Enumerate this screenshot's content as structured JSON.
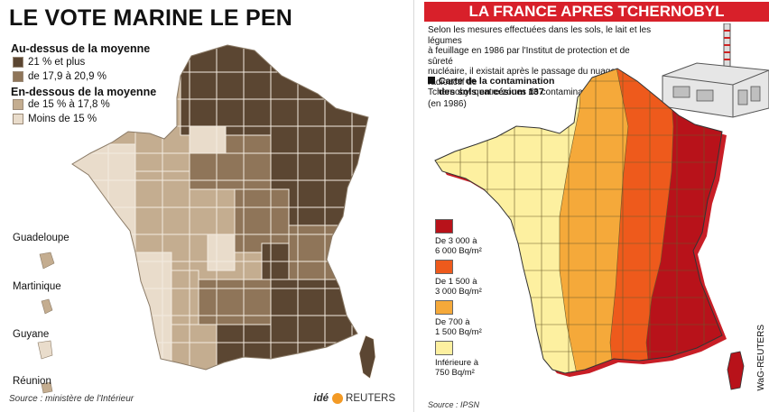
{
  "left_panel": {
    "title": "LE VOTE MARINE LE PEN",
    "legend": {
      "above_title": "Au-dessus de la moyenne",
      "above_items": [
        {
          "label": "21 % et plus",
          "color": "#5b4632"
        },
        {
          "label": "de 17,9 à 20,9 %",
          "color": "#8f7559"
        }
      ],
      "below_title": "En-dessous de la moyenne",
      "below_items": [
        {
          "label": "de 15 % à 17,8 %",
          "color": "#c4ad90"
        },
        {
          "label": "Moins de 15 %",
          "color": "#e9dccb"
        }
      ]
    },
    "overseas": [
      "Guadeloupe",
      "Martinique",
      "Guyane",
      "Réunion"
    ],
    "source": "Source : ministère de l'Intérieur",
    "logo_ide": "idé",
    "logo_reuters": "REUTERS"
  },
  "right_panel": {
    "title": "LA FRANCE APRES TCHERNOBYL",
    "intro_lines": [
      "Selon les mesures effectuées dans les sols, le lait et les légumes",
      "à feuillage en 1986 par l'Institut de protection et de sûreté",
      "nucléaire, il existait après le passage du nuage radioactif de",
      "Tchernobyl quatre zones de contamination en France"
    ],
    "map_title_lines": [
      "Carte de la contamination",
      "des sols en césium 137"
    ],
    "map_year": "(en 1986)",
    "legend": [
      {
        "line1": "De 3 000 à",
        "line2": "6 000 Bq/m²",
        "color": "#b8121a"
      },
      {
        "line1": "De 1 500 à",
        "line2": "3 000 Bq/m²",
        "color": "#ee5a1c"
      },
      {
        "line1": "De 700 à",
        "line2": "1 500 Bq/m²",
        "color": "#f5a93a"
      },
      {
        "line1": "Inférieure à",
        "line2": "750 Bq/m²",
        "color": "#fdf0a0"
      }
    ],
    "source": "Source : IPSN",
    "credit": "WaG-REUTERS"
  }
}
